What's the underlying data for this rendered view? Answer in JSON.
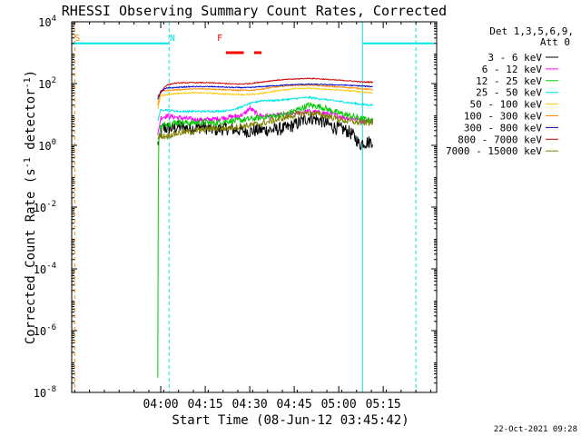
{
  "chart_data": {
    "type": "line",
    "title": "RHESSI Observing Summary Count Rates, Corrected",
    "xlabel": "Start Time (08-Jun-12 03:45:42)",
    "ylabel": "Corrected Count Rate (s^-1 detector^-1)",
    "ylabel_parts": {
      "pre": "Corrected Count Rate (s",
      "sup1": "-1",
      "mid": " detector",
      "sup2": "-1",
      "post": ")"
    },
    "y_scale": "log",
    "ylim_exp": [
      -8,
      4
    ],
    "ytick_exps": [
      -8,
      -6,
      -4,
      -2,
      0,
      2,
      4
    ],
    "xlim_min": [
      -16,
      107
    ],
    "xticks": [
      {
        "min": 14,
        "label": "04:00"
      },
      {
        "min": 29,
        "label": "04:15"
      },
      {
        "min": 44,
        "label": "04:30"
      },
      {
        "min": 59,
        "label": "04:45"
      },
      {
        "min": 74,
        "label": "05:00"
      },
      {
        "min": 89,
        "label": "05:15"
      }
    ],
    "legend_header": [
      "Det 1,3,5,6,9,",
      "Att 0"
    ],
    "legend_placement": "right",
    "timestamp": "22-Oct-2021 09:28",
    "flags": [
      {
        "label": "S",
        "color": "#ff8c00",
        "min": -15
      },
      {
        "label": "N",
        "color": "#00e5e5",
        "min": 17
      },
      {
        "label": "F",
        "color": "#ff0000",
        "min": 33
      }
    ],
    "flag_lines": [
      {
        "color": "#00e5e5",
        "width": 2,
        "segments": [
          [
            -16,
            16.8
          ],
          [
            82,
            106
          ]
        ],
        "y_exp": 3.3
      },
      {
        "color": "#ff0000",
        "width": 3,
        "segments": [
          [
            36,
            42
          ],
          [
            45.5,
            48
          ]
        ],
        "y_exp": 3.0
      }
    ],
    "vlines": [
      {
        "min": -15,
        "color": "#ff8c00",
        "dash": true
      },
      {
        "min": 16.8,
        "color": "#00e5e5",
        "dash": true
      },
      {
        "min": 82,
        "color": "#00e5e5",
        "dash": false
      },
      {
        "min": 100,
        "color": "#00e5e5",
        "dash": true
      }
    ],
    "series": [
      {
        "name": "3 - 6 keV",
        "color": "#000000",
        "amp": 0.22,
        "pts": [
          [
            13,
            0.05
          ],
          [
            13.8,
            0.2
          ],
          [
            14.5,
            0.55
          ],
          [
            16,
            0.55
          ],
          [
            18,
            0.55
          ],
          [
            20,
            0.6
          ],
          [
            24,
            0.55
          ],
          [
            28,
            0.6
          ],
          [
            32,
            0.5
          ],
          [
            36,
            0.55
          ],
          [
            40,
            0.5
          ],
          [
            44,
            0.45
          ],
          [
            48,
            0.5
          ],
          [
            52,
            0.5
          ],
          [
            56,
            0.55
          ],
          [
            60,
            0.7
          ],
          [
            64,
            0.9
          ],
          [
            68,
            0.8
          ],
          [
            72,
            0.6
          ],
          [
            76,
            0.5
          ],
          [
            78,
            0.4
          ],
          [
            80,
            0.2
          ],
          [
            81,
            0.0
          ],
          [
            82,
            0.1
          ],
          [
            84,
            0.1
          ],
          [
            85.5,
            0.15
          ]
        ]
      },
      {
        "name": "6 - 12 keV",
        "color": "#ff00ff",
        "amp": 0.08,
        "pts": [
          [
            13,
            0.3
          ],
          [
            14,
            0.9
          ],
          [
            16,
            0.95
          ],
          [
            20,
            0.9
          ],
          [
            24,
            0.85
          ],
          [
            28,
            0.82
          ],
          [
            32,
            0.85
          ],
          [
            36,
            0.9
          ],
          [
            40,
            0.95
          ],
          [
            42,
            1.0
          ],
          [
            44,
            1.2
          ],
          [
            46,
            1.05
          ],
          [
            48,
            0.95
          ],
          [
            52,
            0.95
          ],
          [
            56,
            1.0
          ],
          [
            60,
            1.05
          ],
          [
            64,
            1.1
          ],
          [
            68,
            1.05
          ],
          [
            72,
            1.0
          ],
          [
            76,
            0.9
          ],
          [
            80,
            0.85
          ],
          [
            82,
            0.8
          ],
          [
            85.5,
            0.78
          ]
        ]
      },
      {
        "name": "12 - 25 keV",
        "color": "#00cc00",
        "amp": 0.1,
        "pts": [
          [
            12.8,
            -7.5
          ],
          [
            13.05,
            -7.5
          ],
          [
            13.15,
            -1.5
          ],
          [
            13.3,
            0.3
          ],
          [
            14,
            0.6
          ],
          [
            16,
            0.7
          ],
          [
            20,
            0.75
          ],
          [
            24,
            0.72
          ],
          [
            28,
            0.75
          ],
          [
            32,
            0.72
          ],
          [
            36,
            0.78
          ],
          [
            40,
            0.8
          ],
          [
            44,
            0.85
          ],
          [
            48,
            0.9
          ],
          [
            52,
            0.95
          ],
          [
            56,
            1.0
          ],
          [
            60,
            1.15
          ],
          [
            64,
            1.3
          ],
          [
            68,
            1.25
          ],
          [
            72,
            1.1
          ],
          [
            76,
            1.0
          ],
          [
            80,
            0.9
          ],
          [
            82,
            0.85
          ],
          [
            85.5,
            0.8
          ]
        ]
      },
      {
        "name": "25 - 50 keV",
        "color": "#00e5e5",
        "amp": 0.03,
        "pts": [
          [
            13,
            0.8
          ],
          [
            14,
            1.15
          ],
          [
            16,
            1.15
          ],
          [
            20,
            1.1
          ],
          [
            24,
            1.1
          ],
          [
            28,
            1.1
          ],
          [
            32,
            1.1
          ],
          [
            36,
            1.12
          ],
          [
            40,
            1.2
          ],
          [
            44,
            1.35
          ],
          [
            48,
            1.45
          ],
          [
            52,
            1.45
          ],
          [
            56,
            1.48
          ],
          [
            60,
            1.52
          ],
          [
            64,
            1.55
          ],
          [
            68,
            1.5
          ],
          [
            72,
            1.45
          ],
          [
            76,
            1.4
          ],
          [
            80,
            1.35
          ],
          [
            82,
            1.32
          ],
          [
            85.5,
            1.3
          ]
        ]
      },
      {
        "name": "50 - 100 keV",
        "color": "#ffc800",
        "amp": 0.02,
        "pts": [
          [
            13,
            1.2
          ],
          [
            14,
            1.6
          ],
          [
            16,
            1.65
          ],
          [
            20,
            1.68
          ],
          [
            24,
            1.7
          ],
          [
            28,
            1.7
          ],
          [
            32,
            1.68
          ],
          [
            36,
            1.66
          ],
          [
            40,
            1.65
          ],
          [
            44,
            1.64
          ],
          [
            48,
            1.68
          ],
          [
            52,
            1.75
          ],
          [
            56,
            1.8
          ],
          [
            60,
            1.85
          ],
          [
            64,
            1.85
          ],
          [
            68,
            1.82
          ],
          [
            72,
            1.8
          ],
          [
            76,
            1.78
          ],
          [
            80,
            1.75
          ],
          [
            85.5,
            1.7
          ]
        ]
      },
      {
        "name": "100 - 300 keV",
        "color": "#ff8c00",
        "amp": 0.02,
        "pts": [
          [
            13,
            1.3
          ],
          [
            14,
            1.75
          ],
          [
            16,
            1.78
          ],
          [
            20,
            1.8
          ],
          [
            24,
            1.82
          ],
          [
            28,
            1.83
          ],
          [
            32,
            1.82
          ],
          [
            36,
            1.8
          ],
          [
            40,
            1.78
          ],
          [
            44,
            1.78
          ],
          [
            48,
            1.82
          ],
          [
            52,
            1.88
          ],
          [
            56,
            1.92
          ],
          [
            60,
            1.95
          ],
          [
            64,
            1.95
          ],
          [
            68,
            1.93
          ],
          [
            72,
            1.9
          ],
          [
            76,
            1.88
          ],
          [
            80,
            1.85
          ],
          [
            85.5,
            1.8
          ]
        ]
      },
      {
        "name": "300 - 800 keV",
        "color": "#0000cc",
        "amp": 0.015,
        "pts": [
          [
            13,
            1.5
          ],
          [
            14,
            1.75
          ],
          [
            15,
            1.8
          ],
          [
            16,
            1.85
          ],
          [
            20,
            1.88
          ],
          [
            24,
            1.9
          ],
          [
            28,
            1.9
          ],
          [
            32,
            1.9
          ],
          [
            36,
            1.88
          ],
          [
            40,
            1.87
          ],
          [
            44,
            1.87
          ],
          [
            48,
            1.9
          ],
          [
            52,
            1.93
          ],
          [
            56,
            1.95
          ],
          [
            60,
            1.97
          ],
          [
            64,
            1.98
          ],
          [
            68,
            1.97
          ],
          [
            72,
            1.96
          ],
          [
            76,
            1.95
          ],
          [
            80,
            1.93
          ],
          [
            85.5,
            1.9
          ]
        ]
      },
      {
        "name": "800 - 7000 keV",
        "color": "#cc0000",
        "amp": 0.015,
        "pts": [
          [
            13,
            1.6
          ],
          [
            14,
            1.7
          ],
          [
            15,
            1.85
          ],
          [
            16,
            1.95
          ],
          [
            18,
            2.0
          ],
          [
            20,
            2.02
          ],
          [
            24,
            2.03
          ],
          [
            28,
            2.03
          ],
          [
            32,
            2.02
          ],
          [
            36,
            2.0
          ],
          [
            40,
            1.98
          ],
          [
            44,
            2.0
          ],
          [
            48,
            2.05
          ],
          [
            52,
            2.1
          ],
          [
            56,
            2.13
          ],
          [
            60,
            2.15
          ],
          [
            64,
            2.17
          ],
          [
            68,
            2.15
          ],
          [
            72,
            2.12
          ],
          [
            76,
            2.1
          ],
          [
            80,
            2.07
          ],
          [
            82,
            2.05
          ],
          [
            85.5,
            2.05
          ]
        ]
      },
      {
        "name": "7000 - 15000 keV",
        "color": "#808000",
        "amp": 0.1,
        "pts": [
          [
            13,
            0.3
          ],
          [
            14,
            0.3
          ],
          [
            16,
            0.3
          ],
          [
            18,
            0.35
          ],
          [
            20,
            0.4
          ],
          [
            24,
            0.45
          ],
          [
            28,
            0.5
          ],
          [
            32,
            0.55
          ],
          [
            36,
            0.55
          ],
          [
            40,
            0.6
          ],
          [
            44,
            0.65
          ],
          [
            48,
            0.7
          ],
          [
            52,
            0.8
          ],
          [
            56,
            0.9
          ],
          [
            60,
            1.0
          ],
          [
            64,
            1.05
          ],
          [
            68,
            1.0
          ],
          [
            72,
            0.9
          ],
          [
            76,
            0.8
          ],
          [
            80,
            0.75
          ],
          [
            82,
            0.72
          ],
          [
            85.5,
            0.75
          ]
        ]
      }
    ]
  }
}
